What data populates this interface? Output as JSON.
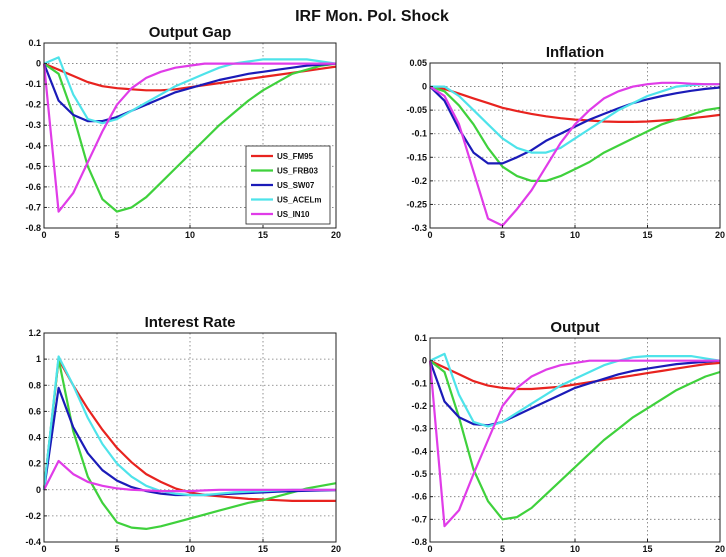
{
  "figure_title": "IRF Mon. Pol. Shock",
  "chart_data": [
    {
      "type": "line",
      "title": "Output Gap",
      "xlim": [
        0,
        20
      ],
      "ylim": [
        -0.8,
        0.1
      ],
      "xticks": [
        0,
        5,
        10,
        15,
        20
      ],
      "yticks": [
        0.1,
        0,
        -0.1,
        -0.2,
        -0.3,
        -0.4,
        -0.5,
        -0.6,
        -0.7,
        -0.8
      ],
      "ytick_labels": [
        "0.1",
        "0",
        "-0.1",
        "-0.2",
        "-0.3",
        "-0.4",
        "-0.5",
        "-0.6",
        "-0.7",
        "-0.8"
      ],
      "grid": true,
      "legend": "inside-right",
      "x": [
        0,
        1,
        2,
        3,
        4,
        5,
        6,
        7,
        8,
        9,
        10,
        11,
        12,
        13,
        14,
        15,
        16,
        17,
        18,
        19,
        20
      ],
      "series": [
        {
          "name": "US_FM95",
          "color": "#e8231f",
          "values": [
            0,
            -0.03,
            -0.06,
            -0.09,
            -0.11,
            -0.12,
            -0.125,
            -0.13,
            -0.13,
            -0.125,
            -0.115,
            -0.105,
            -0.095,
            -0.085,
            -0.075,
            -0.065,
            -0.055,
            -0.045,
            -0.035,
            -0.025,
            -0.015
          ]
        },
        {
          "name": "US_FRB03",
          "color": "#3fd13c",
          "values": [
            0,
            -0.05,
            -0.25,
            -0.5,
            -0.66,
            -0.72,
            -0.7,
            -0.65,
            -0.58,
            -0.51,
            -0.44,
            -0.37,
            -0.3,
            -0.24,
            -0.18,
            -0.13,
            -0.09,
            -0.05,
            -0.03,
            -0.01,
            0
          ]
        },
        {
          "name": "US_SW07",
          "color": "#1b1bb8",
          "values": [
            0,
            -0.18,
            -0.25,
            -0.28,
            -0.28,
            -0.26,
            -0.23,
            -0.2,
            -0.17,
            -0.14,
            -0.12,
            -0.1,
            -0.08,
            -0.065,
            -0.05,
            -0.04,
            -0.03,
            -0.02,
            -0.01,
            -0.005,
            0
          ]
        },
        {
          "name": "US_ACELm",
          "color": "#4ee3ea",
          "values": [
            0,
            0.03,
            -0.15,
            -0.27,
            -0.29,
            -0.27,
            -0.23,
            -0.19,
            -0.15,
            -0.11,
            -0.08,
            -0.05,
            -0.02,
            0,
            0.01,
            0.02,
            0.02,
            0.02,
            0.02,
            0.01,
            0
          ]
        },
        {
          "name": "US_IN10",
          "color": "#e03ce8",
          "values": [
            0,
            -0.72,
            -0.63,
            -0.48,
            -0.33,
            -0.2,
            -0.12,
            -0.07,
            -0.04,
            -0.02,
            -0.01,
            0,
            0,
            0,
            0,
            0,
            0,
            0,
            0,
            0,
            0
          ]
        }
      ]
    },
    {
      "type": "line",
      "title": "Inflation",
      "xlim": [
        0,
        20
      ],
      "ylim": [
        -0.3,
        0.05
      ],
      "xticks": [
        0,
        5,
        10,
        15,
        20
      ],
      "yticks": [
        0.05,
        0,
        -0.05,
        -0.1,
        -0.15,
        -0.2,
        -0.25,
        -0.3
      ],
      "ytick_labels": [
        "0.05",
        "0",
        "-0.05",
        "-0.1",
        "-0.15",
        "-0.2",
        "-0.25",
        "-0.3"
      ],
      "grid": true,
      "x": [
        0,
        1,
        2,
        3,
        4,
        5,
        6,
        7,
        8,
        9,
        10,
        11,
        12,
        13,
        14,
        15,
        16,
        17,
        18,
        19,
        20
      ],
      "series": [
        {
          "name": "US_FM95",
          "color": "#e8231f",
          "values": [
            0,
            -0.005,
            -0.015,
            -0.025,
            -0.035,
            -0.045,
            -0.052,
            -0.058,
            -0.063,
            -0.067,
            -0.07,
            -0.072,
            -0.074,
            -0.075,
            -0.075,
            -0.074,
            -0.072,
            -0.07,
            -0.067,
            -0.064,
            -0.06
          ]
        },
        {
          "name": "US_FRB03",
          "color": "#3fd13c",
          "values": [
            0,
            -0.01,
            -0.04,
            -0.08,
            -0.13,
            -0.17,
            -0.19,
            -0.2,
            -0.2,
            -0.19,
            -0.175,
            -0.16,
            -0.14,
            -0.125,
            -0.11,
            -0.095,
            -0.08,
            -0.07,
            -0.06,
            -0.05,
            -0.045
          ]
        },
        {
          "name": "US_SW07",
          "color": "#1b1bb8",
          "values": [
            0,
            -0.03,
            -0.09,
            -0.14,
            -0.163,
            -0.163,
            -0.15,
            -0.135,
            -0.115,
            -0.1,
            -0.085,
            -0.07,
            -0.058,
            -0.046,
            -0.035,
            -0.027,
            -0.02,
            -0.014,
            -0.009,
            -0.005,
            -0.002
          ]
        },
        {
          "name": "US_ACELm",
          "color": "#4ee3ea",
          "values": [
            0,
            0,
            -0.02,
            -0.05,
            -0.08,
            -0.11,
            -0.13,
            -0.14,
            -0.14,
            -0.13,
            -0.11,
            -0.09,
            -0.07,
            -0.05,
            -0.035,
            -0.02,
            -0.01,
            0,
            0.003,
            0.005,
            0.005
          ]
        },
        {
          "name": "US_IN10",
          "color": "#e03ce8",
          "values": [
            0,
            -0.02,
            -0.08,
            -0.18,
            -0.28,
            -0.295,
            -0.26,
            -0.22,
            -0.17,
            -0.12,
            -0.08,
            -0.05,
            -0.025,
            -0.01,
            0,
            0.005,
            0.008,
            0.008,
            0.006,
            0.005,
            0.005
          ]
        }
      ]
    },
    {
      "type": "line",
      "title": "Interest Rate",
      "xlim": [
        0,
        20
      ],
      "ylim": [
        -0.4,
        1.2
      ],
      "xticks": [
        0,
        5,
        10,
        15,
        20
      ],
      "yticks": [
        1.2,
        1,
        0.8,
        0.6,
        0.4,
        0.2,
        0,
        -0.2,
        -0.4
      ],
      "ytick_labels": [
        "1.2",
        "1",
        "0.8",
        "0.6",
        "0.4",
        "0.2",
        "0",
        "-0.2",
        "-0.4"
      ],
      "grid": true,
      "x": [
        0,
        1,
        2,
        3,
        4,
        5,
        6,
        7,
        8,
        9,
        10,
        11,
        12,
        13,
        14,
        15,
        16,
        17,
        18,
        19,
        20
      ],
      "series": [
        {
          "name": "US_FM95",
          "color": "#e8231f",
          "values": [
            0,
            1,
            0.8,
            0.62,
            0.46,
            0.32,
            0.21,
            0.12,
            0.06,
            0.01,
            -0.02,
            -0.04,
            -0.05,
            -0.06,
            -0.07,
            -0.075,
            -0.08,
            -0.085,
            -0.085,
            -0.085,
            -0.085
          ]
        },
        {
          "name": "US_FRB03",
          "color": "#3fd13c",
          "values": [
            0,
            1,
            0.45,
            0.1,
            -0.1,
            -0.25,
            -0.29,
            -0.3,
            -0.28,
            -0.25,
            -0.22,
            -0.19,
            -0.16,
            -0.13,
            -0.1,
            -0.08,
            -0.05,
            -0.02,
            0.01,
            0.03,
            0.05
          ]
        },
        {
          "name": "US_SW07",
          "color": "#1b1bb8",
          "values": [
            0,
            0.78,
            0.48,
            0.28,
            0.15,
            0.07,
            0.02,
            -0.01,
            -0.03,
            -0.04,
            -0.04,
            -0.04,
            -0.035,
            -0.03,
            -0.025,
            -0.02,
            -0.015,
            -0.01,
            -0.008,
            -0.005,
            -0.003
          ]
        },
        {
          "name": "US_ACELm",
          "color": "#4ee3ea",
          "values": [
            0,
            1.02,
            0.8,
            0.55,
            0.35,
            0.2,
            0.1,
            0.03,
            -0.01,
            -0.03,
            -0.04,
            -0.04,
            -0.03,
            -0.02,
            -0.015,
            -0.01,
            -0.005,
            0,
            0,
            0,
            0
          ]
        },
        {
          "name": "US_IN10",
          "color": "#e03ce8",
          "values": [
            0,
            0.22,
            0.12,
            0.06,
            0.03,
            0.01,
            0,
            -0.005,
            -0.01,
            -0.01,
            -0.01,
            -0.005,
            0,
            0,
            0,
            0,
            0,
            0,
            0,
            0,
            0
          ]
        }
      ]
    },
    {
      "type": "line",
      "title": "Output",
      "xlim": [
        0,
        20
      ],
      "ylim": [
        -0.8,
        0.1
      ],
      "xticks": [
        0,
        5,
        10,
        15,
        20
      ],
      "yticks": [
        0.1,
        0,
        -0.1,
        -0.2,
        -0.3,
        -0.4,
        -0.5,
        -0.6,
        -0.7,
        -0.8
      ],
      "ytick_labels": [
        "0.1",
        "0",
        "-0.1",
        "-0.2",
        "-0.3",
        "-0.4",
        "-0.5",
        "-0.6",
        "-0.7",
        "-0.8"
      ],
      "grid": true,
      "x": [
        0,
        1,
        2,
        3,
        4,
        5,
        6,
        7,
        8,
        9,
        10,
        11,
        12,
        13,
        14,
        15,
        16,
        17,
        18,
        19,
        20
      ],
      "series": [
        {
          "name": "US_FM95",
          "color": "#e8231f",
          "values": [
            0,
            -0.03,
            -0.06,
            -0.09,
            -0.11,
            -0.12,
            -0.125,
            -0.125,
            -0.12,
            -0.115,
            -0.105,
            -0.095,
            -0.085,
            -0.075,
            -0.065,
            -0.055,
            -0.045,
            -0.035,
            -0.025,
            -0.015,
            -0.01
          ]
        },
        {
          "name": "US_FRB03",
          "color": "#3fd13c",
          "values": [
            0,
            -0.05,
            -0.25,
            -0.48,
            -0.62,
            -0.7,
            -0.69,
            -0.65,
            -0.59,
            -0.53,
            -0.47,
            -0.41,
            -0.35,
            -0.3,
            -0.25,
            -0.21,
            -0.17,
            -0.13,
            -0.1,
            -0.07,
            -0.05
          ]
        },
        {
          "name": "US_SW07",
          "color": "#1b1bb8",
          "values": [
            0,
            -0.18,
            -0.25,
            -0.28,
            -0.285,
            -0.27,
            -0.24,
            -0.21,
            -0.18,
            -0.15,
            -0.12,
            -0.1,
            -0.08,
            -0.06,
            -0.045,
            -0.035,
            -0.025,
            -0.015,
            -0.01,
            -0.005,
            0
          ]
        },
        {
          "name": "US_ACELm",
          "color": "#4ee3ea",
          "values": [
            0,
            0.03,
            -0.15,
            -0.27,
            -0.29,
            -0.27,
            -0.23,
            -0.19,
            -0.15,
            -0.11,
            -0.08,
            -0.05,
            -0.02,
            0,
            0.015,
            0.02,
            0.02,
            0.02,
            0.02,
            0.01,
            0
          ]
        },
        {
          "name": "US_IN10",
          "color": "#e03ce8",
          "values": [
            0,
            -0.73,
            -0.66,
            -0.5,
            -0.35,
            -0.2,
            -0.12,
            -0.07,
            -0.04,
            -0.02,
            -0.01,
            0,
            0,
            0,
            0,
            0,
            0,
            0,
            0,
            0,
            0
          ]
        }
      ]
    }
  ]
}
